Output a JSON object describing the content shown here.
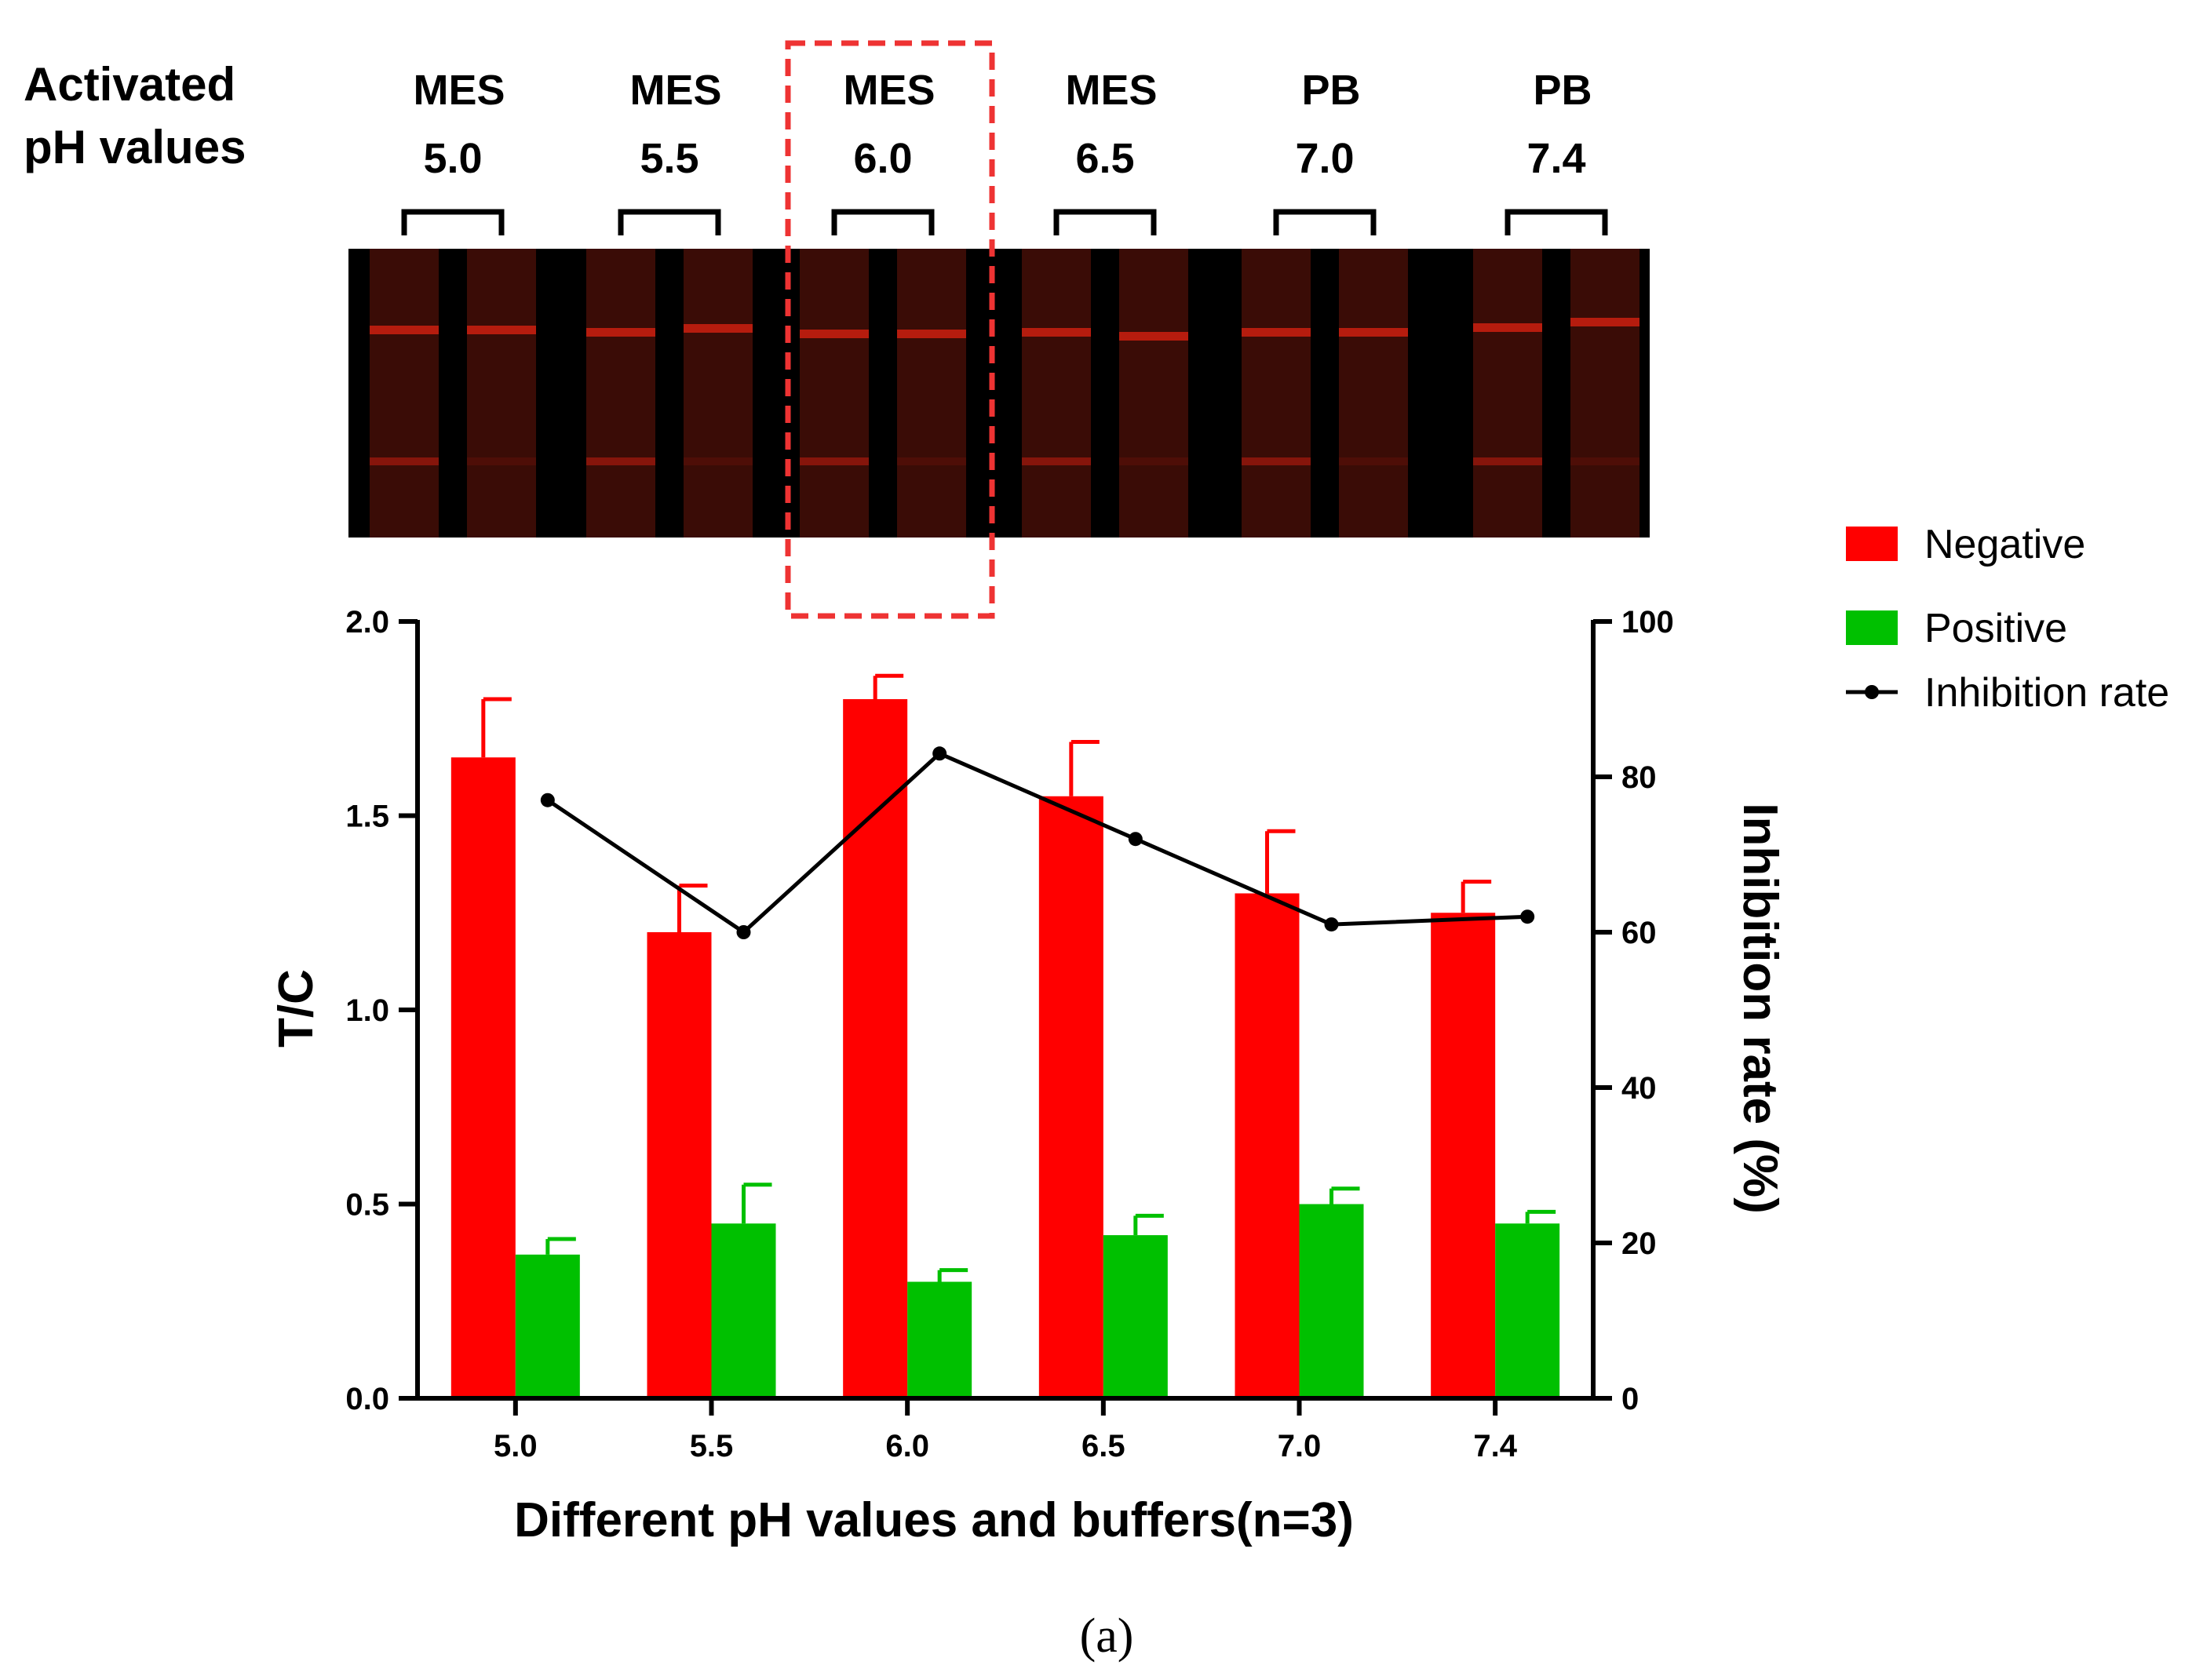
{
  "header": {
    "row_title_line1": "Activated",
    "row_title_line2": "pH values",
    "groups": [
      {
        "buffer": "MES",
        "ph": "5.0"
      },
      {
        "buffer": "MES",
        "ph": "5.5"
      },
      {
        "buffer": "MES",
        "ph": "6.0"
      },
      {
        "buffer": "MES",
        "ph": "6.5"
      },
      {
        "buffer": "PB",
        "ph": "7.0"
      },
      {
        "buffer": "PB",
        "ph": "7.4"
      }
    ],
    "highlighted_group": "6.0",
    "highlight_color": "#ee3333"
  },
  "strip_photo": {
    "background": "#000000",
    "strip_color": "#3a0c06",
    "band_color": "#c41e10"
  },
  "chart_data": {
    "type": "bar",
    "xlabel": "Different pH values and buffers(n=3)",
    "ylabel": "T/C",
    "y2label": "Inhibition rate (%)",
    "categories": [
      "5.0",
      "5.5",
      "6.0",
      "6.5",
      "7.0",
      "7.4"
    ],
    "ylim": [
      0,
      2.0
    ],
    "yticks": [
      "0.0",
      "0.5",
      "1.0",
      "1.5",
      "2.0"
    ],
    "y2lim": [
      0,
      100
    ],
    "y2ticks": [
      "0",
      "20",
      "40",
      "60",
      "80",
      "100"
    ],
    "series": [
      {
        "name": "Negative",
        "kind": "bar",
        "color": "#ff0000",
        "values": [
          1.65,
          1.2,
          1.8,
          1.55,
          1.3,
          1.25
        ],
        "error": [
          0.15,
          0.12,
          0.06,
          0.14,
          0.16,
          0.08
        ]
      },
      {
        "name": "Positive",
        "kind": "bar",
        "color": "#00c000",
        "values": [
          0.37,
          0.45,
          0.3,
          0.42,
          0.5,
          0.45
        ],
        "error": [
          0.04,
          0.1,
          0.03,
          0.05,
          0.04,
          0.03
        ]
      },
      {
        "name": "Inhibition rate",
        "kind": "line",
        "axis": "right",
        "color": "#000000",
        "values": [
          77,
          60,
          83,
          72,
          61,
          62
        ]
      }
    ],
    "legend_position": "top-right",
    "grid": false
  },
  "panel_label": "(a)"
}
